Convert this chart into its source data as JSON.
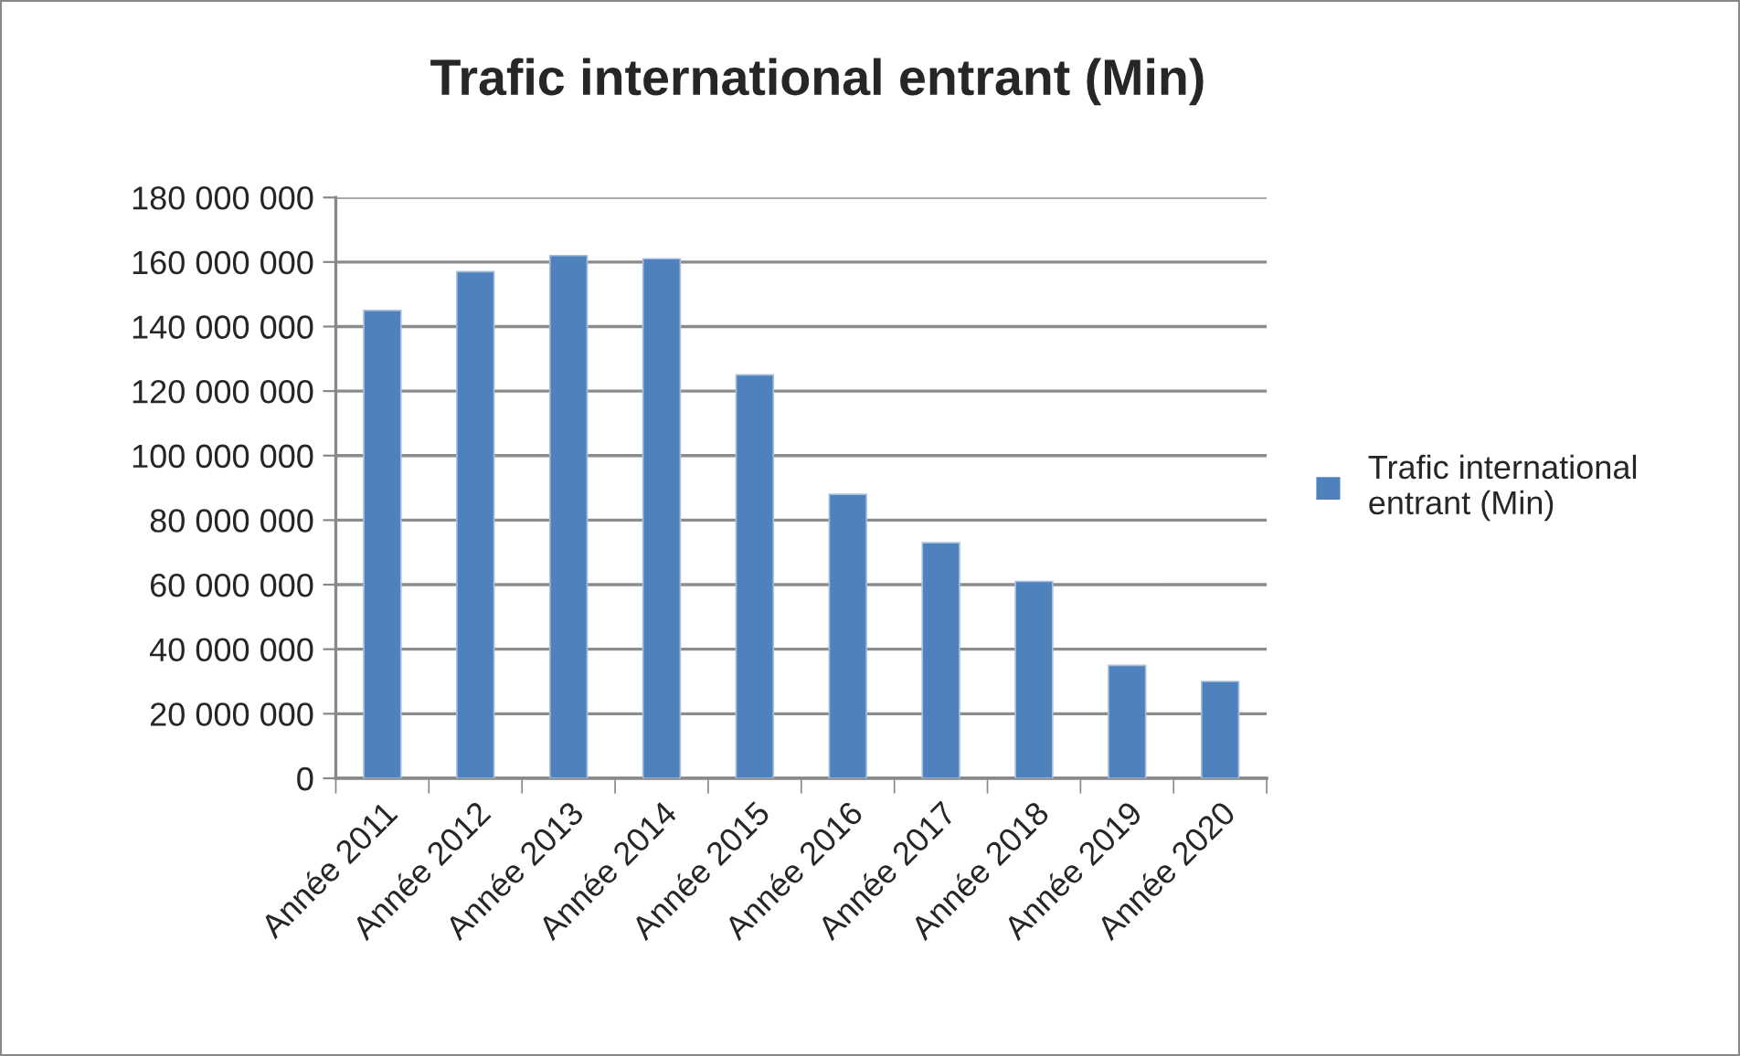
{
  "chart_data": {
    "type": "bar",
    "title": "Trafic international entrant (Min)",
    "categories": [
      "Année 2011",
      "Année 2012",
      "Année 2013",
      "Année 2014",
      "Année 2015",
      "Année 2016",
      "Année 2017",
      "Année 2018",
      "Année 2019",
      "Année 2020"
    ],
    "series": [
      {
        "name": "Trafic international entrant (Min)",
        "color": "#4f81bd",
        "values": [
          145000000,
          157000000,
          162000000,
          161000000,
          125000000,
          88000000,
          73000000,
          61000000,
          35000000,
          30000000
        ]
      }
    ],
    "ylim": [
      0,
      180000000
    ],
    "yticks": [
      {
        "value": 0,
        "label": "0"
      },
      {
        "value": 20000000,
        "label": "20 000 000"
      },
      {
        "value": 40000000,
        "label": "40 000 000"
      },
      {
        "value": 60000000,
        "label": "60 000 000"
      },
      {
        "value": 80000000,
        "label": "80 000 000"
      },
      {
        "value": 100000000,
        "label": "100 000 000"
      },
      {
        "value": 120000000,
        "label": "120 000 000"
      },
      {
        "value": 140000000,
        "label": "140 000 000"
      },
      {
        "value": 160000000,
        "label": "160 000 000"
      },
      {
        "value": 180000000,
        "label": "180 000 000"
      }
    ],
    "grid": "y",
    "legend": "right"
  }
}
